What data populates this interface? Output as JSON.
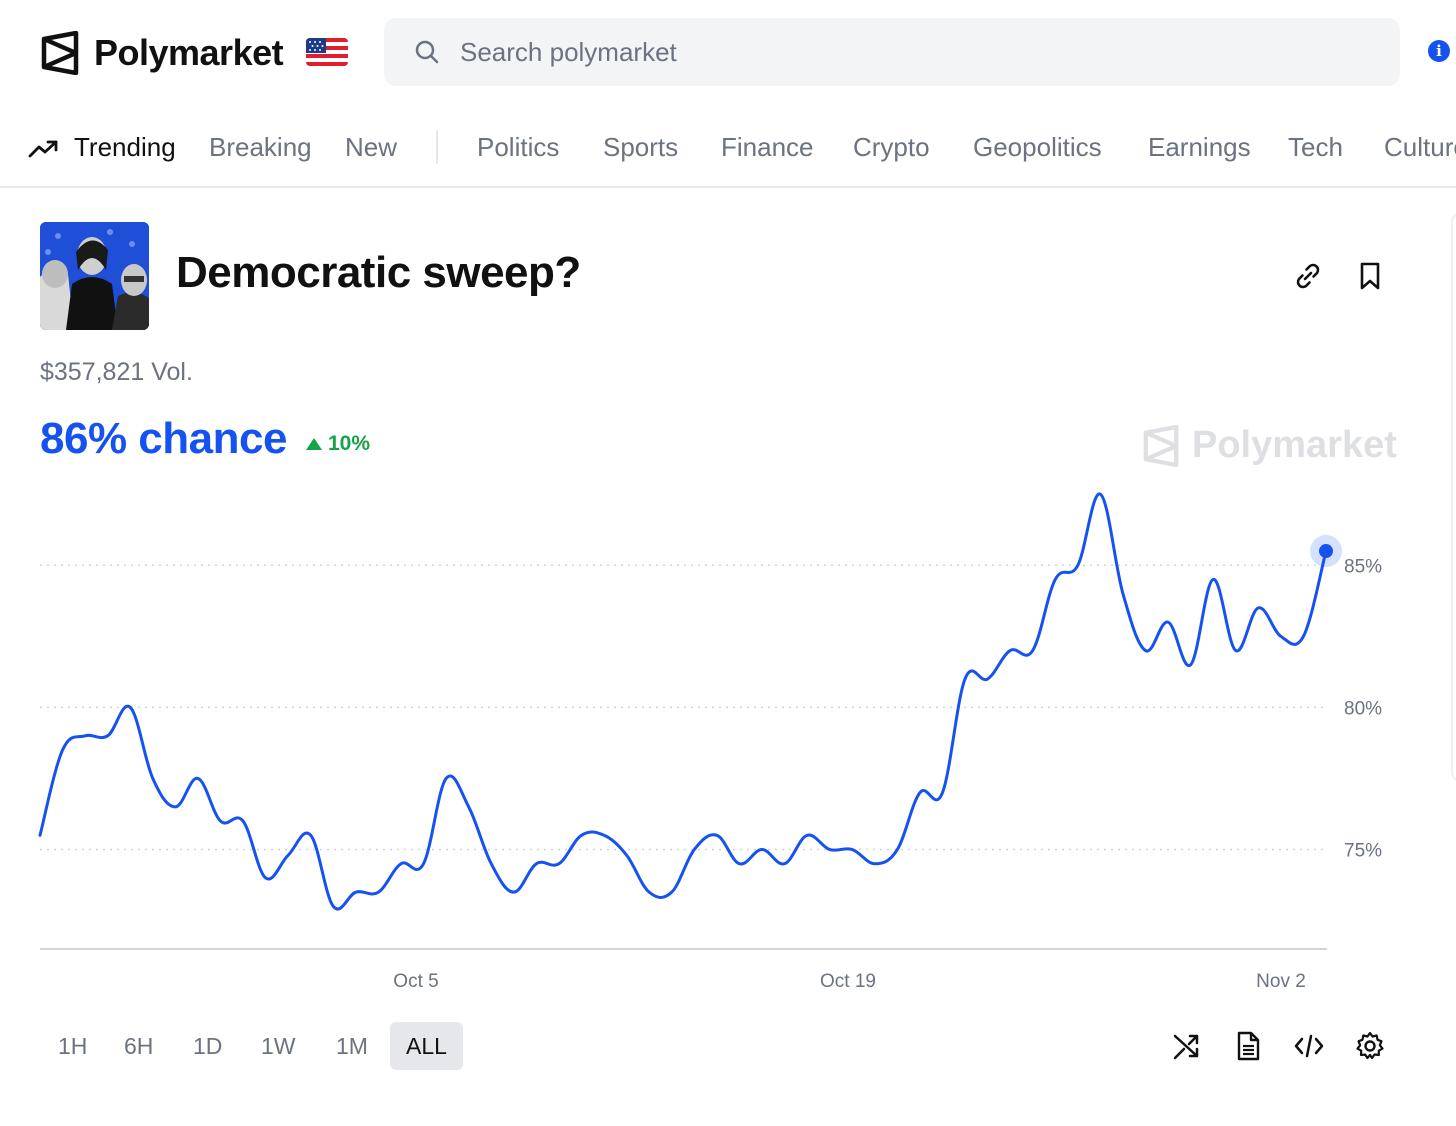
{
  "header": {
    "brand": "Polymarket",
    "flag_icon": "us-flag-icon",
    "search_placeholder": "Search polymarket"
  },
  "nav": {
    "items": [
      {
        "label": "Trending",
        "active": true
      },
      {
        "label": "Breaking"
      },
      {
        "label": "New"
      },
      {
        "label": "Politics"
      },
      {
        "label": "Sports"
      },
      {
        "label": "Finance"
      },
      {
        "label": "Crypto"
      },
      {
        "label": "Geopolitics"
      },
      {
        "label": "Earnings"
      },
      {
        "label": "Tech"
      },
      {
        "label": "Culture"
      }
    ]
  },
  "market": {
    "title": "Democratic sweep?",
    "volume": "$357,821 Vol.",
    "chance": "86% chance",
    "change": "10%",
    "watermark": "Polymarket"
  },
  "colors": {
    "accent": "#1652f0",
    "positive": "#16a34a",
    "muted": "#6b7280"
  },
  "chart_data": {
    "type": "line",
    "series": [
      {
        "values_pct": [
          75.5,
          78.5,
          79,
          79,
          80,
          77.5,
          76.5,
          77.5,
          76,
          76,
          74,
          74.8,
          75.5,
          73,
          73.5,
          73.5,
          74.5,
          74.5,
          77.5,
          76.5,
          74.5,
          73.5,
          74.5,
          74.5,
          75.5,
          75.5,
          74.8,
          73.5,
          73.5,
          75,
          75.5,
          74.5,
          75,
          74.5,
          75.5,
          75,
          75,
          74.5,
          75,
          77,
          77,
          81,
          81,
          82,
          82,
          84.5,
          85,
          87.5,
          84,
          82,
          83,
          81.5,
          84.5,
          82,
          83.5,
          82.5,
          82.5,
          85.5
        ]
      }
    ],
    "x_tick_labels": [
      "Oct 5",
      "Oct 19",
      "Nov 2"
    ],
    "y_tick_labels": [
      "85%",
      "80%",
      "75%"
    ],
    "ylim": [
      71.5,
      88
    ],
    "grid": true,
    "current_value": 85.5
  },
  "ranges": [
    "1H",
    "6H",
    "1D",
    "1W",
    "1M",
    "ALL"
  ],
  "selected_range": "ALL",
  "toolbar_icons": [
    "shuffle-icon",
    "document-icon",
    "embed-code-icon",
    "settings-icon"
  ]
}
